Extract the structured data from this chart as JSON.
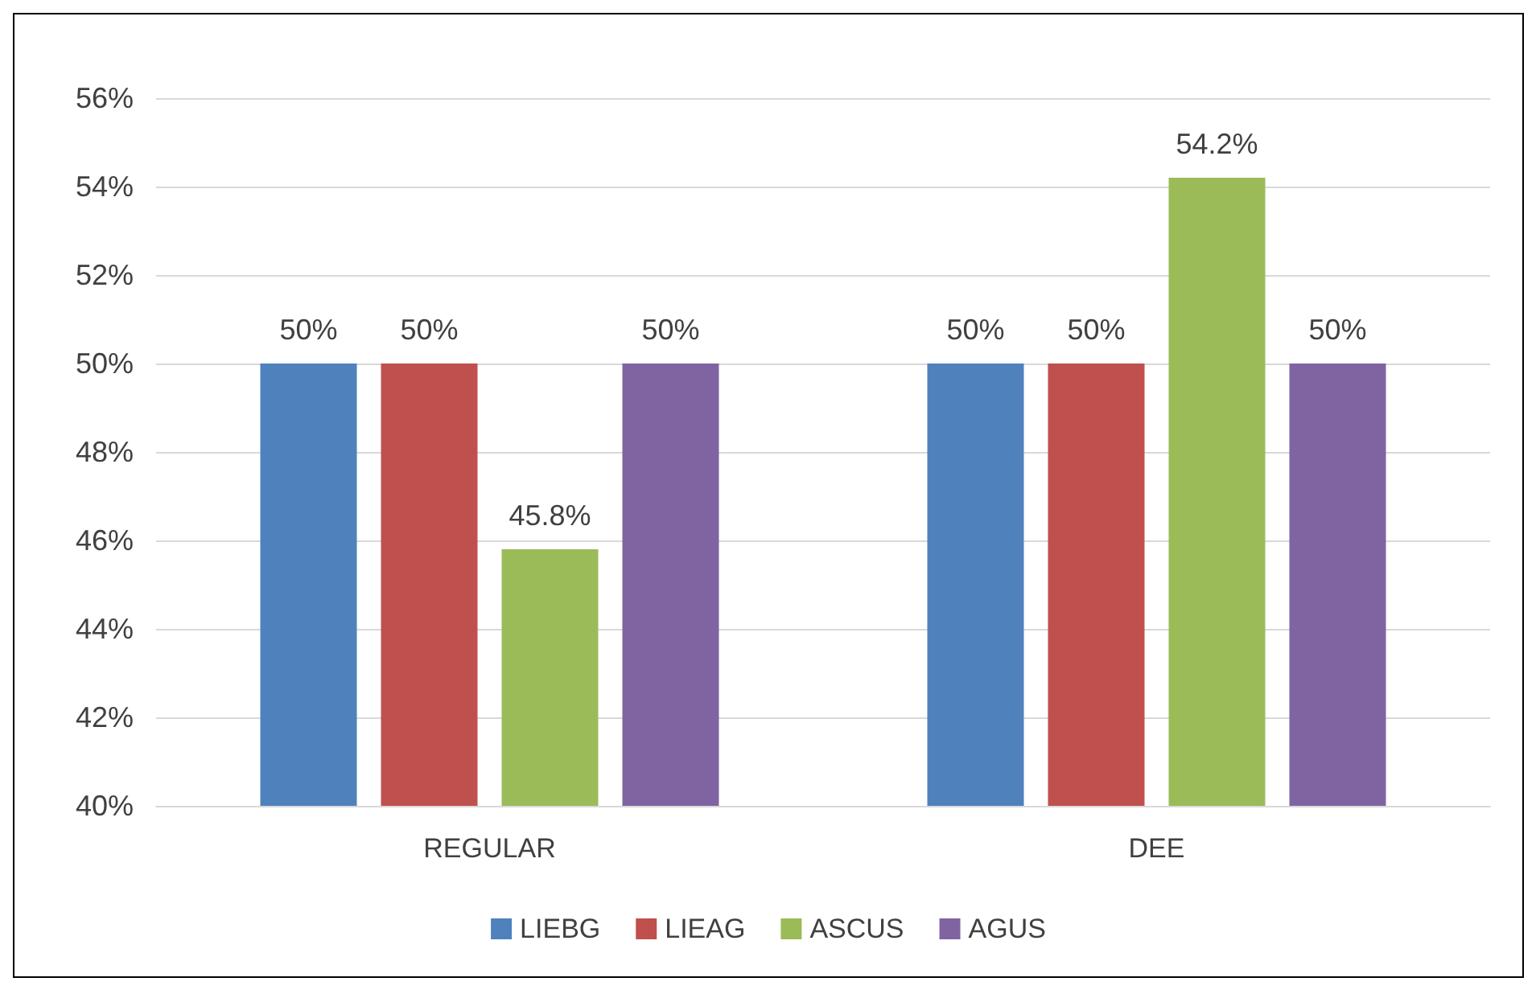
{
  "chart_data": {
    "type": "bar",
    "categories": [
      "REGULAR",
      "DEE"
    ],
    "series": [
      {
        "name": "LIEBG",
        "color": "#4f81bd",
        "values": [
          50,
          50
        ],
        "value_labels": [
          "50%",
          "50%"
        ]
      },
      {
        "name": "LIEAG",
        "color": "#c0504d",
        "values": [
          50,
          50
        ],
        "value_labels": [
          "50%",
          "50%"
        ]
      },
      {
        "name": "ASCUS",
        "color": "#9bbb59",
        "values": [
          45.8,
          54.2
        ],
        "value_labels": [
          "45.8%",
          "54.2%"
        ]
      },
      {
        "name": "AGUS",
        "color": "#8064a2",
        "values": [
          50,
          50
        ],
        "value_labels": [
          "50%",
          "50%"
        ]
      }
    ],
    "ylim": [
      40,
      56
    ],
    "yticks": [
      {
        "value": 40,
        "label": "40%"
      },
      {
        "value": 42,
        "label": "42%"
      },
      {
        "value": 44,
        "label": "44%"
      },
      {
        "value": 46,
        "label": "46%"
      },
      {
        "value": 48,
        "label": "48%"
      },
      {
        "value": 50,
        "label": "50%"
      },
      {
        "value": 52,
        "label": "52%"
      },
      {
        "value": 54,
        "label": "54%"
      },
      {
        "value": 56,
        "label": "56%"
      }
    ],
    "grid": "y",
    "legend": "bottom"
  }
}
